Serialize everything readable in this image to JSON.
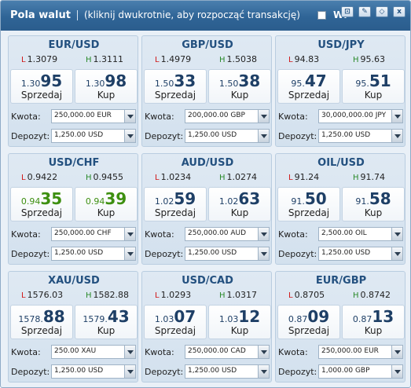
{
  "header": {
    "title": "Pola walut",
    "hint": "(kliknij dwukrotnie, aby rozpocząć transakcję)",
    "checkbox_label": "Wł",
    "buttons": [
      "⊡",
      "✎",
      "◇",
      "x"
    ]
  },
  "labels": {
    "sell": "Sprzedaj",
    "buy": "Kup",
    "amount": "Kwota:",
    "deposit": "Depozyt:",
    "low_tag": "L",
    "high_tag": "H"
  },
  "cards": [
    {
      "pair": "EUR/USD",
      "low": "1.3079",
      "high": "1.3111",
      "sell_small": "1.30",
      "sell_big": "95",
      "buy_small": "1.30",
      "buy_big": "98",
      "amount": "250,000.00 EUR",
      "deposit": "1,250.00 USD",
      "color": "#1e3f66"
    },
    {
      "pair": "GBP/USD",
      "low": "1.4979",
      "high": "1.5038",
      "sell_small": "1.50",
      "sell_big": "33",
      "buy_small": "1.50",
      "buy_big": "38",
      "amount": "200,000.00 GBP",
      "deposit": "1,250.00 USD",
      "color": "#1e3f66"
    },
    {
      "pair": "USD/JPY",
      "low": "94.83",
      "high": "95.63",
      "sell_small": "95.",
      "sell_big": "47",
      "buy_small": "95.",
      "buy_big": "51",
      "amount": "30,000,000.00 JPY",
      "deposit": "1,250.00 USD",
      "color": "#1e3f66"
    },
    {
      "pair": "USD/CHF",
      "low": "0.9422",
      "high": "0.9455",
      "sell_small": "0.94",
      "sell_big": "35",
      "buy_small": "0.94",
      "buy_big": "39",
      "amount": "250,000.00 CHF",
      "deposit": "1,250.00 USD",
      "color": "#3d8f10"
    },
    {
      "pair": "AUD/USD",
      "low": "1.0234",
      "high": "1.0274",
      "sell_small": "1.02",
      "sell_big": "59",
      "buy_small": "1.02",
      "buy_big": "63",
      "amount": "250,000.00 AUD",
      "deposit": "1,250.00 USD",
      "color": "#1e3f66"
    },
    {
      "pair": "OIL/USD",
      "low": "91.24",
      "high": "91.74",
      "sell_small": "91.",
      "sell_big": "50",
      "buy_small": "91.",
      "buy_big": "58",
      "amount": "2,500.00 OIL",
      "deposit": "1,250.00 USD",
      "color": "#1e3f66"
    },
    {
      "pair": "XAU/USD",
      "low": "1576.03",
      "high": "1582.88",
      "sell_small": "1578.",
      "sell_big": "88",
      "buy_small": "1579.",
      "buy_big": "43",
      "amount": "250.00 XAU",
      "deposit": "1,250.00 USD",
      "color": "#1e3f66"
    },
    {
      "pair": "USD/CAD",
      "low": "1.0293",
      "high": "1.0317",
      "sell_small": "1.03",
      "sell_big": "07",
      "buy_small": "1.03",
      "buy_big": "12",
      "amount": "250,000.00 CAD",
      "deposit": "1,250.00 USD",
      "color": "#1e3f66"
    },
    {
      "pair": "EUR/GBP",
      "low": "0.8705",
      "high": "0.8742",
      "sell_small": "0.87",
      "sell_big": "09",
      "buy_small": "0.87",
      "buy_big": "13",
      "amount": "250,000.00 EUR",
      "deposit": "1,000.00 GBP",
      "color": "#1e3f66"
    }
  ]
}
